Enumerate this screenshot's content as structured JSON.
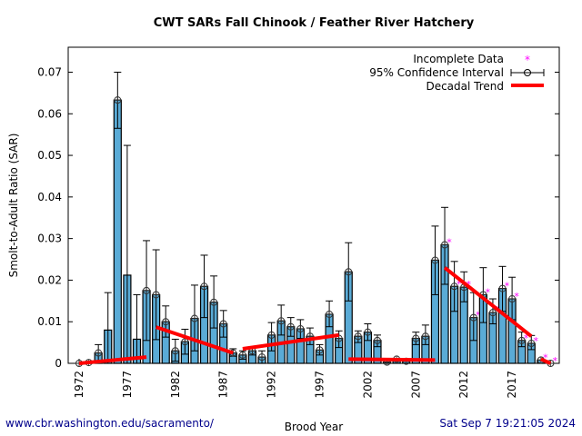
{
  "chart_data": {
    "type": "bar",
    "title": "CWT SARs Fall Chinook  / Feather River Hatchery",
    "xlabel": "Brood Year",
    "ylabel": "Smolt-to-Adult Ratio (SAR)",
    "ylim": [
      0,
      0.076
    ],
    "yticks": [
      0,
      0.01,
      0.02,
      0.03,
      0.04,
      0.05,
      0.06,
      0.07
    ],
    "ytick_labels": [
      "0",
      "0.01",
      "0.02",
      "0.03",
      "0.04",
      "0.05",
      "0.06",
      "0.07"
    ],
    "xticks": [
      1972,
      1977,
      1982,
      1987,
      1992,
      1997,
      2002,
      2007,
      2012,
      2017
    ],
    "xlim": [
      1971,
      2022
    ],
    "legend_position": "top-right",
    "legend": {
      "incomplete": "Incomplete Data",
      "ci": "95% Confidence Interval",
      "trend": "Decadal Trend"
    },
    "colors": {
      "bar": "#5aabd6",
      "trend": "#ff0000",
      "incomplete": "#ff00ff"
    },
    "years": [
      1972,
      1973,
      1974,
      1975,
      1976,
      1977,
      1978,
      1979,
      1980,
      1981,
      1982,
      1983,
      1984,
      1985,
      1986,
      1987,
      1988,
      1989,
      1990,
      1991,
      1992,
      1993,
      1994,
      1995,
      1996,
      1997,
      1998,
      1999,
      2000,
      2001,
      2002,
      2003,
      2004,
      2005,
      2006,
      2007,
      2008,
      2009,
      2010,
      2011,
      2012,
      2013,
      2014,
      2015,
      2016,
      2017,
      2018,
      2019,
      2020,
      2021
    ],
    "values": [
      0,
      0.0002,
      0.0025,
      0.008,
      0.0633,
      0.0212,
      0.0058,
      0.0175,
      0.0165,
      0.01,
      0.003,
      0.0052,
      0.0108,
      0.0185,
      0.0147,
      0.0095,
      0.0025,
      0.002,
      0.003,
      0.0015,
      0.0068,
      0.0102,
      0.0088,
      0.0083,
      0.0065,
      0.0032,
      0.0118,
      0.006,
      0.022,
      0.0065,
      0.0075,
      0.0055,
      0.0003,
      0.001,
      0.0005,
      0.006,
      0.0065,
      0.0248,
      0.0285,
      0.0185,
      0.0183,
      0.011,
      0.0165,
      0.0122,
      0.018,
      0.0155,
      0.0055,
      0.0048,
      0.0008,
      0
    ],
    "ci_low": [
      null,
      null,
      0.0005,
      0,
      0.0565,
      0,
      0,
      0.0055,
      0.0057,
      0.0063,
      0.0005,
      0.0022,
      0.003,
      0.011,
      0.0085,
      0.0063,
      0.0017,
      0.001,
      0.002,
      0,
      0.003,
      0.0068,
      0.0065,
      0.006,
      0.0045,
      0.002,
      0.0088,
      0.0038,
      0.015,
      0.005,
      0.0055,
      0.004,
      null,
      null,
      null,
      0.0045,
      0.0045,
      0.0165,
      0.019,
      0.0125,
      0.0148,
      0.0055,
      0.0098,
      0.0095,
      0.0125,
      0.0105,
      0.004,
      0.0033,
      null,
      null
    ],
    "ci_high": [
      null,
      null,
      0.0045,
      0.017,
      0.07,
      0.0524,
      0.0165,
      0.0295,
      0.0273,
      0.0138,
      0.0058,
      0.0082,
      0.0188,
      0.026,
      0.021,
      0.0127,
      0.0035,
      0.003,
      0.004,
      0.003,
      0.0098,
      0.014,
      0.011,
      0.0105,
      0.0085,
      0.0045,
      0.015,
      0.0078,
      0.029,
      0.0078,
      0.0095,
      0.0068,
      null,
      null,
      null,
      0.0075,
      0.0092,
      0.033,
      0.0375,
      0.0245,
      0.022,
      0.017,
      0.023,
      0.0155,
      0.0233,
      0.0207,
      0.0075,
      0.0067,
      null,
      null
    ],
    "has_marker": [
      true,
      true,
      true,
      false,
      true,
      false,
      false,
      true,
      true,
      true,
      true,
      true,
      true,
      true,
      true,
      true,
      true,
      true,
      true,
      true,
      true,
      true,
      true,
      true,
      true,
      true,
      true,
      true,
      true,
      true,
      true,
      true,
      true,
      true,
      true,
      true,
      true,
      true,
      true,
      true,
      true,
      true,
      true,
      true,
      true,
      true,
      true,
      true,
      true,
      true
    ],
    "incomplete": [
      false,
      false,
      false,
      false,
      false,
      false,
      false,
      false,
      false,
      false,
      false,
      false,
      false,
      false,
      false,
      false,
      false,
      false,
      false,
      false,
      false,
      false,
      false,
      false,
      false,
      false,
      false,
      false,
      false,
      false,
      false,
      false,
      false,
      false,
      false,
      false,
      false,
      false,
      true,
      true,
      true,
      true,
      true,
      true,
      true,
      true,
      true,
      true,
      true,
      true
    ],
    "trend_segments": [
      {
        "x": [
          1972,
          1979
        ],
        "y": [
          0,
          0.0015
        ]
      },
      {
        "x": [
          1980,
          1988
        ],
        "y": [
          0.0087,
          0.0025
        ]
      },
      {
        "x": [
          1989,
          1999
        ],
        "y": [
          0.0035,
          0.0068
        ]
      },
      {
        "x": [
          2000,
          2009
        ],
        "y": [
          0.001,
          0.0008
        ]
      },
      {
        "x": [
          2010,
          2019
        ],
        "y": [
          0.023,
          0.0065
        ]
      },
      {
        "x": [
          2020,
          2021
        ],
        "y": [
          0.001,
          0
        ]
      }
    ]
  },
  "footer": {
    "url": "www.cbr.washington.edu/sacramento/",
    "timestamp": "Sat Sep  7 19:21:05 2024"
  }
}
